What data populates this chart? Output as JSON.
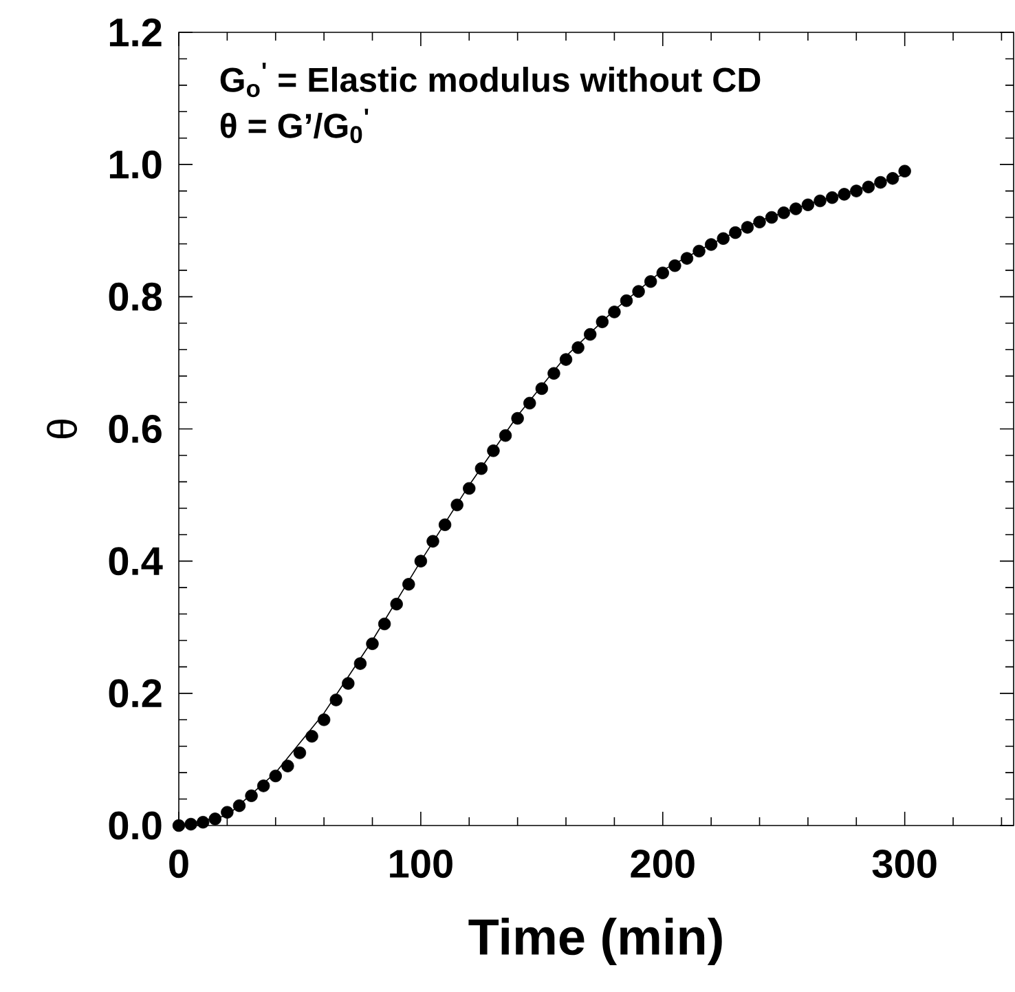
{
  "chart_data": {
    "type": "scatter",
    "xlabel": "Time (min)",
    "ylabel": "θ",
    "annotations": [
      "G$_{o}$$^{'}$ = Elastic modulus without CD",
      "θ = G’/G$_{0}$$^{'}$"
    ],
    "xlim": [
      0,
      345
    ],
    "ylim": [
      0,
      1.2
    ],
    "xticks": [
      0,
      {
        "value": 20,
        "label": null
      },
      {
        "value": 40,
        "label": null
      },
      {
        "value": 60,
        "label": null
      },
      {
        "value": 80,
        "label": null
      },
      100,
      {
        "value": 120,
        "label": null
      },
      {
        "value": 140,
        "label": null
      },
      {
        "value": 160,
        "label": null
      },
      {
        "value": 180,
        "label": null
      },
      200,
      {
        "value": 220,
        "label": null
      },
      {
        "value": 240,
        "label": null
      },
      {
        "value": 260,
        "label": null
      },
      {
        "value": 280,
        "label": null
      },
      300,
      {
        "value": 320,
        "label": null
      },
      {
        "value": 340,
        "label": null
      }
    ],
    "yticks": [
      {
        "value": 0,
        "label": "0.0"
      },
      {
        "value": 0.04,
        "label": null
      },
      {
        "value": 0.08,
        "label": null
      },
      {
        "value": 0.12,
        "label": null
      },
      {
        "value": 0.16,
        "label": null
      },
      {
        "value": 0.2,
        "label": "0.2"
      },
      {
        "value": 0.24,
        "label": null
      },
      {
        "value": 0.28,
        "label": null
      },
      {
        "value": 0.32,
        "label": null
      },
      {
        "value": 0.36,
        "label": null
      },
      {
        "value": 0.4,
        "label": "0.4"
      },
      {
        "value": 0.44,
        "label": null
      },
      {
        "value": 0.48,
        "label": null
      },
      {
        "value": 0.52,
        "label": null
      },
      {
        "value": 0.56,
        "label": null
      },
      {
        "value": 0.6,
        "label": "0.6"
      },
      {
        "value": 0.64,
        "label": null
      },
      {
        "value": 0.68,
        "label": null
      },
      {
        "value": 0.72,
        "label": null
      },
      {
        "value": 0.76,
        "label": null
      },
      {
        "value": 0.8,
        "label": "0.8"
      },
      {
        "value": 0.84,
        "label": null
      },
      {
        "value": 0.88,
        "label": null
      },
      {
        "value": 0.92,
        "label": null
      },
      {
        "value": 0.96,
        "label": null
      },
      {
        "value": 1.0,
        "label": "1.0"
      },
      {
        "value": 1.04,
        "label": null
      },
      {
        "value": 1.08,
        "label": null
      },
      {
        "value": 1.12,
        "label": null
      },
      {
        "value": 1.16,
        "label": null
      },
      {
        "value": 1.2,
        "label": "1.2"
      }
    ],
    "grid": false,
    "series": [
      {
        "color": "#000000",
        "marker": "circle",
        "x": [
          0,
          5,
          10,
          15,
          20,
          25,
          30,
          35,
          40,
          45,
          50,
          55,
          60,
          65,
          70,
          75,
          80,
          85,
          90,
          95,
          100,
          105,
          110,
          115,
          120,
          125,
          130,
          135,
          140,
          145,
          150,
          155,
          160,
          165,
          170,
          175,
          180,
          185,
          190,
          195,
          200,
          205,
          210,
          215,
          220,
          225,
          230,
          235,
          240,
          245,
          250,
          255,
          260,
          265,
          270,
          275,
          280,
          285,
          290,
          295,
          300
        ],
        "values": [
          0.0,
          0.002,
          0.005,
          0.01,
          0.02,
          0.03,
          0.045,
          0.06,
          0.075,
          0.09,
          0.11,
          0.135,
          0.16,
          0.19,
          0.215,
          0.245,
          0.275,
          0.305,
          0.335,
          0.365,
          0.4,
          0.43,
          0.455,
          0.485,
          0.51,
          0.54,
          0.567,
          0.59,
          0.616,
          0.639,
          0.661,
          0.684,
          0.705,
          0.723,
          0.743,
          0.762,
          0.777,
          0.794,
          0.808,
          0.823,
          0.836,
          0.847,
          0.858,
          0.869,
          0.879,
          0.888,
          0.897,
          0.905,
          0.913,
          0.92,
          0.927,
          0.933,
          0.939,
          0.945,
          0.95,
          0.955,
          0.96,
          0.966,
          0.973,
          0.979,
          0.99
        ]
      },
      {
        "type": "line",
        "color": "#000000",
        "marker": "none",
        "line_style": "solid",
        "x": [
          0,
          20,
          40,
          60,
          80,
          100,
          120,
          140,
          160,
          180,
          200,
          220,
          240,
          260,
          280,
          300
        ],
        "values": [
          0,
          0.015,
          0.08,
          0.17,
          0.28,
          0.4,
          0.515,
          0.62,
          0.71,
          0.78,
          0.84,
          0.88,
          0.915,
          0.94,
          0.962,
          0.985
        ]
      }
    ]
  }
}
